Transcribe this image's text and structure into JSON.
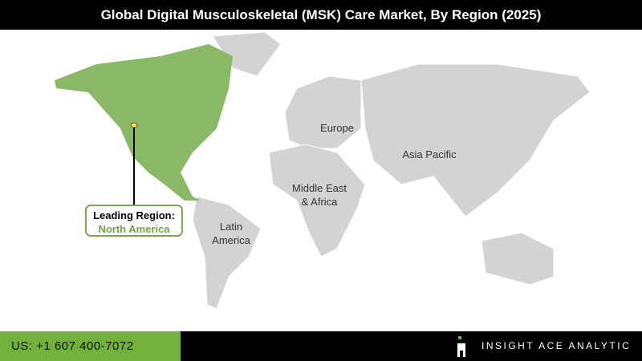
{
  "title": "Global Digital Musculoskeletal (MSK) Care Market, By Region (2025)",
  "regions": {
    "north_america": "North America",
    "europe": "Europe",
    "asia_pacific": "Asia Pacific",
    "mea": "Middle East & Africa",
    "latin_america": "Latin America"
  },
  "leading": {
    "label": "Leading Region:",
    "value": "North America"
  },
  "colors": {
    "highlight": "#8ab866",
    "land": "#d3d3d3",
    "accent": "#72b13b"
  },
  "footer": {
    "phone": "US: +1 607 400-7072",
    "brand": "INSIGHT ACE ANALYTIC"
  }
}
